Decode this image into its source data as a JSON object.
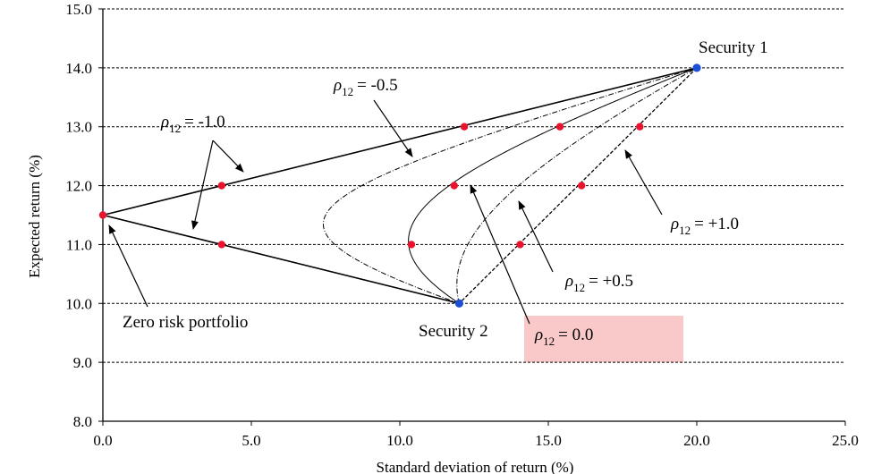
{
  "chart_data": {
    "type": "line",
    "title": "",
    "xlabel": "Standard deviation of return (%)",
    "ylabel": "Expected return (%)",
    "xlim": [
      0,
      25
    ],
    "ylim": [
      8,
      15
    ],
    "x_ticks": [
      "0.0",
      "5.0",
      "10.0",
      "15.0",
      "20.0",
      "25.0"
    ],
    "y_ticks": [
      "8.0",
      "9.0",
      "10.0",
      "11.0",
      "12.0",
      "13.0",
      "14.0",
      "15.0"
    ],
    "grid": "horizontal dashed",
    "securities": [
      {
        "label": "Security 1",
        "x": 20.0,
        "y": 14.0,
        "color": "#1a4fd6"
      },
      {
        "label": "Security 2",
        "x": 12.0,
        "y": 10.0,
        "color": "#1a4fd6"
      }
    ],
    "series": [
      {
        "rho": "= -1.0",
        "style": "solid",
        "weight_points": [
          [
            20,
            14
          ],
          [
            12,
            13
          ],
          [
            4,
            12
          ],
          [
            0,
            11.5
          ],
          [
            4,
            11
          ],
          [
            12,
            10
          ]
        ]
      },
      {
        "rho": "= -0.5",
        "style": "dash-dot"
      },
      {
        "rho": "= 0.0",
        "style": "solid-thin"
      },
      {
        "rho": "= +0.5",
        "style": "dash-dot"
      },
      {
        "rho": "= +1.0",
        "style": "dashed",
        "weight_points": [
          [
            20,
            14
          ],
          [
            18,
            13
          ],
          [
            16,
            12
          ],
          [
            14,
            11
          ],
          [
            12,
            10
          ]
        ]
      }
    ],
    "highlight_points": [
      {
        "x": 0.0,
        "y": 11.5
      },
      {
        "x": 4.0,
        "y": 12.0
      },
      {
        "x": 4.0,
        "y": 11.0
      },
      {
        "x": 12.17,
        "y": 13.0
      },
      {
        "x": 15.39,
        "y": 13.0
      },
      {
        "x": 18.08,
        "y": 13.0
      },
      {
        "x": 11.83,
        "y": 12.0
      },
      {
        "x": 16.12,
        "y": 12.0
      },
      {
        "x": 10.39,
        "y": 11.0
      },
      {
        "x": 14.05,
        "y": 11.0
      }
    ],
    "point_color": "#e8142e",
    "annotations": {
      "rho_symbol": "ρ",
      "rho_subscript": "12",
      "labels": [
        {
          "id": "rho-minus-1",
          "series": 0
        },
        {
          "id": "rho-minus-05",
          "series": 1
        },
        {
          "id": "rho-0",
          "series": 2
        },
        {
          "id": "rho-plus-05",
          "series": 3
        },
        {
          "id": "rho-plus-1",
          "series": 4
        }
      ],
      "zero_risk": "Zero risk portfolio"
    },
    "highlight_box_color": "#f9c9c9"
  }
}
